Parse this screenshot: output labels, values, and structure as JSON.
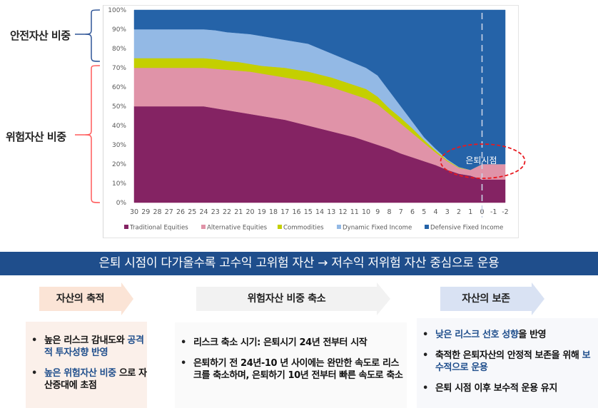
{
  "side_labels": {
    "safe": "안전자산 비중",
    "risk": "위험자산 비중"
  },
  "chart_data": {
    "type": "area",
    "stacked": true,
    "title": "",
    "xlabel": "",
    "ylabel": "",
    "x": [
      30,
      29,
      28,
      27,
      26,
      25,
      24,
      23,
      22,
      21,
      20,
      19,
      18,
      17,
      16,
      15,
      14,
      13,
      12,
      11,
      10,
      9,
      8,
      7,
      6,
      5,
      4,
      3,
      2,
      1,
      0,
      -1,
      -2
    ],
    "x_tick_labels": [
      "30",
      "29",
      "28",
      "27",
      "26",
      "25",
      "24",
      "23",
      "22",
      "21",
      "20",
      "19",
      "18",
      "17",
      "16",
      "15",
      "14",
      "13",
      "12",
      "11",
      "10",
      "9",
      "8",
      "7",
      "6",
      "5",
      "4",
      "3",
      "2",
      "1",
      "0",
      "-1",
      "-2"
    ],
    "ylim": [
      0,
      100
    ],
    "y_tick_labels": [
      "0%",
      "10%",
      "20%",
      "30%",
      "40%",
      "50%",
      "60%",
      "70%",
      "80%",
      "90%",
      "100%"
    ],
    "series": [
      {
        "name": "Traditional Equities",
        "color": "#842363",
        "values": [
          50,
          50,
          50,
          50,
          50,
          50,
          50,
          49,
          48,
          47,
          46,
          45,
          44,
          43,
          41.5,
          40,
          38.5,
          37,
          35.5,
          34,
          32,
          30,
          28,
          25.5,
          23.5,
          21.5,
          19.5,
          17,
          15,
          14,
          12,
          12,
          12
        ]
      },
      {
        "name": "Alternative Equities",
        "color": "#e093a8",
        "values": [
          20,
          20,
          20,
          20,
          20,
          20,
          20,
          20.5,
          21,
          21.5,
          22,
          22,
          22,
          22,
          22.5,
          23,
          23,
          23,
          22.5,
          22,
          22,
          21,
          18,
          15.5,
          12.5,
          9.5,
          6.5,
          4.5,
          3,
          3,
          8,
          8,
          8
        ]
      },
      {
        "name": "Commodities",
        "color": "#c4cf00",
        "values": [
          5,
          5,
          5,
          5,
          5,
          5,
          5,
          5,
          4.5,
          4.5,
          4,
          4,
          4.5,
          5,
          5,
          5,
          5,
          5,
          5,
          5,
          5,
          4,
          3,
          3,
          2.5,
          1.5,
          1,
          0.5,
          0.3,
          0,
          0,
          0,
          0
        ]
      },
      {
        "name": "Dynamic Fixed Income",
        "color": "#93b9e5",
        "values": [
          15,
          15,
          15,
          15,
          15,
          15,
          15,
          15,
          15,
          15,
          15.5,
          15.5,
          15,
          14.5,
          14.5,
          14.5,
          13.5,
          12.5,
          12,
          11.5,
          11,
          11,
          9,
          6,
          3.5,
          1.5,
          1,
          0.5,
          0.2,
          0,
          0,
          0,
          0
        ]
      },
      {
        "name": "Defensive Fixed Income",
        "color": "#2563a8",
        "values": [
          10,
          10,
          10,
          10,
          10,
          10,
          10,
          10.5,
          11.5,
          12,
          12.5,
          13.5,
          14.5,
          15.5,
          16.5,
          17.5,
          20,
          22.5,
          25,
          27.5,
          30,
          34,
          42,
          50,
          58,
          66,
          72,
          77.5,
          81.5,
          83,
          80,
          80,
          80
        ]
      }
    ],
    "legend": [
      "Traditional Equities",
      "Alternative Equities",
      "Commodities",
      "Dynamic Fixed Income",
      "Defensive Fixed Income"
    ],
    "legend_position": "bottom",
    "annotations": [
      {
        "text": "은퇴시점",
        "at_x": 0,
        "style": "dashed vertical line with red dashed ellipse"
      }
    ],
    "grid": false
  },
  "banner": {
    "text": "은퇴 시점이 다가올수록 고수익 고위험 자산 → 저수익 저위험 자산 중심으로 운용",
    "color": "#1f4e8c"
  },
  "phases": [
    {
      "label": "자산의 축적",
      "color": "#fbe4d6",
      "bullets": [
        {
          "parts": [
            {
              "t": "높은 리스크 감내도와 ",
              "hl": false
            },
            {
              "t": "공격적 투자성향 반영",
              "hl": true
            }
          ]
        },
        {
          "parts": [
            {
              "t": "높은 위험자산 비중",
              "hl": true
            },
            {
              "t": " 으로 자산증대에 초점",
              "hl": false
            }
          ]
        }
      ]
    },
    {
      "label": "위험자산 비중 축소",
      "color": "#f2f2f2",
      "bullets": [
        {
          "parts": [
            {
              "t": "리스크 축소 시기: 은퇴시기 24년 전부터 시작",
              "hl": false
            }
          ]
        },
        {
          "parts": [
            {
              "t": "은퇴하기 전 24년-10 년 사이에는 완만한 속도로 리스크를 축소하며, 은퇴하기 10년 전부터 빠른 속도로 축소",
              "hl": false
            }
          ]
        }
      ]
    },
    {
      "label": "자산의 보존",
      "color": "#d9e2f3",
      "bullets": [
        {
          "parts": [
            {
              "t": "낮은 리스크 선호 성향",
              "hl": true
            },
            {
              "t": "을 반영",
              "hl": false
            }
          ]
        },
        {
          "parts": [
            {
              "t": "축적한 은퇴자산의 안정적 보존을 위해 ",
              "hl": false
            },
            {
              "t": "보수적으로 운용",
              "hl": true
            }
          ]
        },
        {
          "parts": [
            {
              "t": "은퇴 시점 이후 보수적 운용 유지",
              "hl": false
            }
          ]
        }
      ]
    }
  ]
}
